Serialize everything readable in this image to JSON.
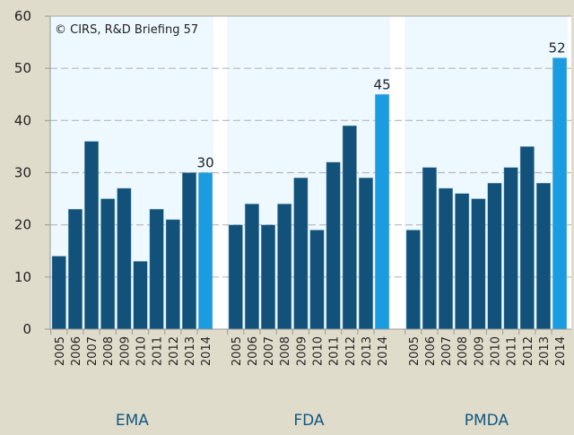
{
  "chart_data": {
    "type": "bar",
    "title": "",
    "xlabel": "",
    "ylabel": "",
    "ylim": [
      0,
      60
    ],
    "yticks": [
      0,
      10,
      20,
      30,
      40,
      50,
      60
    ],
    "grid": true,
    "annotation": "© CIRS, R&D Briefing 57",
    "categories": [
      "2005",
      "2006",
      "2007",
      "2008",
      "2009",
      "2010",
      "2011",
      "2012",
      "2013",
      "2014"
    ],
    "groups": [
      {
        "name": "EMA",
        "values": [
          14,
          23,
          36,
          25,
          27,
          13,
          23,
          21,
          30,
          30
        ],
        "highlight_label": "30"
      },
      {
        "name": "FDA",
        "values": [
          20,
          24,
          20,
          24,
          29,
          19,
          32,
          39,
          29,
          45
        ],
        "highlight_label": "45"
      },
      {
        "name": "PMDA",
        "values": [
          19,
          31,
          27,
          26,
          25,
          28,
          31,
          35,
          28,
          52
        ],
        "highlight_label": "52"
      }
    ],
    "colors": {
      "bar": "#12527a",
      "highlight_bar": "#1a9de0",
      "plot_bg": "#eef9ff",
      "gap_bg": "#ffffff",
      "page_bg": "#e0dccb",
      "group_label": "#14577f"
    }
  }
}
